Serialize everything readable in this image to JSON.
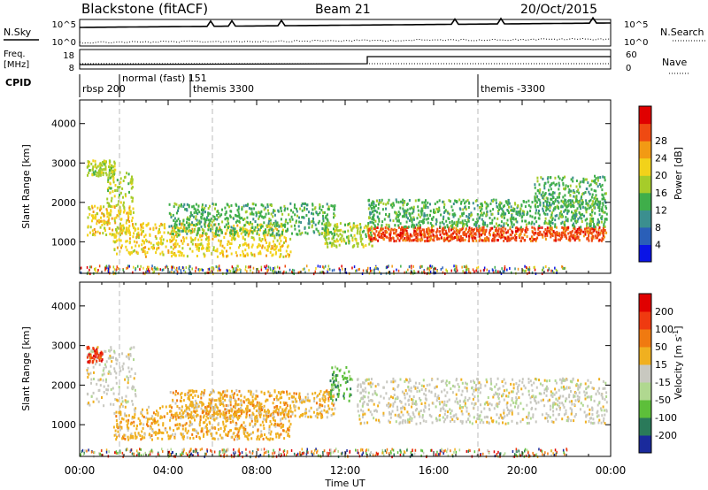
{
  "header": {
    "station": "Blackstone (fitACF)",
    "beam": "Beam 21",
    "date": "20/Oct/2015"
  },
  "noise_panel": {
    "left_label": "N.Sky",
    "right_label": "N.Search",
    "left_ticks": [
      "10^5",
      "10^0"
    ],
    "right_ticks": [
      "10^5",
      "10^0"
    ]
  },
  "freq_panel": {
    "left_label_line1": "Freq.",
    "left_label_line2": "[MHz]",
    "left_ticks": [
      "18",
      "8"
    ],
    "right_label": "Nave",
    "right_ticks": [
      "60",
      "0"
    ]
  },
  "cpid": {
    "label": "CPID",
    "modes": [
      {
        "text": "rbsp 200",
        "hour": 0.0
      },
      {
        "text": "normal (fast) 151",
        "hour": 1.8
      },
      {
        "text": "themis 3300",
        "hour": 5.0
      },
      {
        "text": "themis -3300",
        "hour": 18.0
      }
    ]
  },
  "chart_data": [
    {
      "type": "heatmap",
      "name": "power",
      "ylabel": "Slant Range [km]",
      "yticks": [
        1000,
        2000,
        3000,
        4000
      ],
      "ylim": [
        200,
        4600
      ],
      "xlim": [
        0,
        24
      ],
      "colorbar": {
        "label": "Power [dB]",
        "ticks": [
          "4",
          "8",
          "12",
          "16",
          "20",
          "24",
          "28"
        ],
        "colors": [
          "#0a14e6",
          "#2a5fb8",
          "#3b8f8f",
          "#3fae4a",
          "#a6cc2a",
          "#f2d21a",
          "#f29a14",
          "#ef4a12",
          "#e00000"
        ]
      },
      "bands": [
        {
          "h0": 0.3,
          "h1": 2.4,
          "r0": 1200,
          "r1": 1950,
          "c": 5
        },
        {
          "h0": 0.3,
          "h1": 1.6,
          "r0": 2700,
          "r1": 3100,
          "c": 4
        },
        {
          "h0": 1.2,
          "h1": 2.4,
          "r0": 1900,
          "r1": 2800,
          "c": 4
        },
        {
          "h0": 1.5,
          "h1": 9.5,
          "r0": 650,
          "r1": 1500,
          "c": 5
        },
        {
          "h0": 4.0,
          "h1": 11.5,
          "r0": 1200,
          "r1": 2000,
          "c": 3
        },
        {
          "h0": 11.0,
          "h1": 13.2,
          "r0": 900,
          "r1": 1500,
          "c": 4
        },
        {
          "h0": 13.0,
          "h1": 23.8,
          "r0": 1050,
          "r1": 1400,
          "c": 7
        },
        {
          "h0": 13.0,
          "h1": 23.8,
          "r0": 1400,
          "r1": 2100,
          "c": 3
        },
        {
          "h0": 20.5,
          "h1": 23.8,
          "r0": 1900,
          "r1": 2700,
          "c": 3
        }
      ],
      "vlines": [
        1.8,
        6.0,
        18.0
      ]
    },
    {
      "type": "heatmap",
      "name": "velocity",
      "ylabel": "Slant Range [km]",
      "yticks": [
        1000,
        2000,
        3000,
        4000
      ],
      "ylim": [
        200,
        4600
      ],
      "xlim": [
        0,
        24
      ],
      "colorbar": {
        "label": "Velocity [m s^-1]",
        "ticks": [
          "200",
          "100",
          "50",
          "15",
          "-15",
          "-50",
          "-100",
          "-200"
        ],
        "colors": [
          "#1a2a9c",
          "#2a7a5a",
          "#5dbf3a",
          "#b0d890",
          "#c8c8c0",
          "#f0b020",
          "#f07a10",
          "#ef3a10",
          "#e00000"
        ]
      },
      "bands": [
        {
          "h0": 0.3,
          "h1": 2.5,
          "r0": 1500,
          "r1": 3000,
          "c": 4
        },
        {
          "h0": 1.5,
          "h1": 9.5,
          "r0": 650,
          "r1": 1500,
          "c": 5
        },
        {
          "h0": 4.0,
          "h1": 11.5,
          "r0": 1200,
          "r1": 1900,
          "c": 5
        },
        {
          "h0": 11.3,
          "h1": 12.3,
          "r0": 1600,
          "r1": 2500,
          "c": 2
        },
        {
          "h0": 12.5,
          "h1": 23.8,
          "r0": 1050,
          "r1": 2200,
          "c": 4
        },
        {
          "h0": 0.3,
          "h1": 1.0,
          "r0": 2600,
          "r1": 3000,
          "c": 7
        }
      ],
      "vlines": [
        1.8,
        6.0,
        18.0
      ]
    }
  ],
  "x_axis": {
    "label": "Time UT",
    "ticks": [
      "00:00",
      "04:00",
      "08:00",
      "12:00",
      "16:00",
      "20:00",
      "00:00"
    ]
  }
}
